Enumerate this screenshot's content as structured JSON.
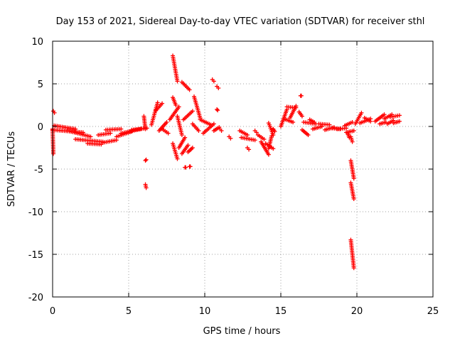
{
  "chart_data": {
    "type": "scatter",
    "title": "Day 153 of 2021, Sidereal Day-to-day VTEC variation (SDTVAR) for receiver sthl",
    "xlabel": "GPS time / hours",
    "ylabel": "SDTVAR / TECUs",
    "xlim": [
      0,
      25
    ],
    "ylim": [
      -20,
      10
    ],
    "xticks": [
      0,
      5,
      10,
      15,
      20,
      25
    ],
    "yticks": [
      10,
      5,
      0,
      -5,
      -10,
      -15,
      -20
    ],
    "xtick_labels": [
      "0",
      "5",
      "10",
      "15",
      "20",
      "25"
    ],
    "ytick_labels": [
      "10",
      "5",
      "0",
      "-5",
      "-10",
      "-15",
      "-20"
    ],
    "grid": true,
    "marker": "+",
    "color": "#ff0000",
    "series": [
      {
        "name": "SDTVAR",
        "segments": [
          [
            0.0,
            -0.3,
            0.05,
            -3.2
          ],
          [
            0.05,
            1.8,
            0.12,
            1.6
          ],
          [
            0.0,
            -0.4,
            2.0,
            -0.7
          ],
          [
            0.1,
            0.1,
            1.5,
            -0.3
          ],
          [
            1.0,
            -0.5,
            2.5,
            -1.2
          ],
          [
            1.5,
            -1.5,
            3.3,
            -1.8
          ],
          [
            2.3,
            -2.0,
            3.2,
            -2.1
          ],
          [
            3.0,
            -1.0,
            3.8,
            -0.8
          ],
          [
            3.3,
            -1.9,
            4.2,
            -1.6
          ],
          [
            3.5,
            -0.4,
            4.5,
            -0.3
          ],
          [
            4.2,
            -1.2,
            5.2,
            -0.6
          ],
          [
            4.5,
            -0.8,
            5.8,
            -0.3
          ],
          [
            5.2,
            -0.4,
            6.2,
            -0.2
          ],
          [
            6.0,
            1.2,
            6.1,
            -0.3
          ],
          [
            6.1,
            -4.0,
            6.15,
            -3.9
          ],
          [
            6.1,
            -6.8,
            6.15,
            -7.2
          ],
          [
            6.5,
            0.2,
            6.9,
            2.8
          ],
          [
            6.8,
            1.9,
            7.2,
            2.7
          ],
          [
            7.0,
            -0.5,
            7.5,
            0.5
          ],
          [
            7.2,
            -0.3,
            7.6,
            -0.8
          ],
          [
            7.7,
            0.8,
            8.3,
            2.3
          ],
          [
            7.9,
            8.3,
            8.2,
            5.3
          ],
          [
            7.9,
            3.4,
            8.1,
            2.5
          ],
          [
            8.2,
            1.2,
            8.5,
            -1.0
          ],
          [
            7.9,
            -2.0,
            8.2,
            -3.8
          ],
          [
            8.3,
            -2.5,
            8.7,
            -1.3
          ],
          [
            8.5,
            -3.2,
            8.9,
            -2.2
          ],
          [
            8.9,
            -3.0,
            9.2,
            -2.5
          ],
          [
            8.5,
            5.2,
            9.0,
            4.3
          ],
          [
            8.6,
            0.8,
            9.2,
            1.8
          ],
          [
            8.7,
            -4.8,
            8.75,
            -4.8
          ],
          [
            9.0,
            -4.7,
            9.05,
            -4.7
          ],
          [
            9.3,
            3.5,
            9.7,
            1.0
          ],
          [
            9.2,
            0.3,
            9.6,
            -0.5
          ],
          [
            9.7,
            0.8,
            10.4,
            0.2
          ],
          [
            9.9,
            -0.8,
            10.6,
            0.3
          ],
          [
            10.5,
            5.5,
            10.6,
            5.3
          ],
          [
            10.8,
            4.7,
            10.9,
            4.5
          ],
          [
            10.8,
            2.0,
            10.85,
            1.9
          ],
          [
            10.6,
            -0.5,
            10.95,
            -0.1
          ],
          [
            11.0,
            -0.3,
            11.1,
            -0.5
          ],
          [
            11.6,
            -1.2,
            11.7,
            -1.4
          ],
          [
            12.3,
            -0.5,
            12.8,
            -1.0
          ],
          [
            12.4,
            -1.3,
            13.3,
            -1.6
          ],
          [
            12.8,
            -2.5,
            12.9,
            -2.7
          ],
          [
            13.3,
            -0.5,
            13.4,
            -0.7
          ],
          [
            13.5,
            -1.0,
            13.9,
            -1.5
          ],
          [
            13.7,
            -1.8,
            14.2,
            -3.3
          ],
          [
            14.0,
            -2.0,
            14.5,
            -2.6
          ],
          [
            14.2,
            0.4,
            14.5,
            -1.0
          ],
          [
            14.5,
            -0.3,
            14.6,
            -0.6
          ],
          [
            14.2,
            -2.6,
            14.4,
            -1.1
          ],
          [
            15.0,
            0.0,
            15.4,
            2.0
          ],
          [
            15.4,
            2.3,
            16.0,
            2.2
          ],
          [
            15.2,
            0.9,
            15.8,
            0.5
          ],
          [
            15.6,
            1.0,
            16.0,
            2.4
          ],
          [
            16.3,
            3.6,
            16.35,
            3.6
          ],
          [
            16.2,
            1.7,
            16.4,
            1.2
          ],
          [
            16.4,
            -0.4,
            16.8,
            -1.0
          ],
          [
            16.5,
            0.5,
            17.3,
            0.3
          ],
          [
            16.9,
            0.8,
            17.2,
            0.5
          ],
          [
            17.1,
            -0.3,
            17.7,
            0.0
          ],
          [
            17.5,
            0.3,
            18.2,
            0.2
          ],
          [
            17.9,
            -0.4,
            18.5,
            -0.1
          ],
          [
            18.3,
            -0.2,
            18.9,
            -0.3
          ],
          [
            18.7,
            -0.3,
            19.3,
            -0.2
          ],
          [
            19.2,
            0.1,
            19.7,
            0.5
          ],
          [
            19.4,
            -0.8,
            19.5,
            -1.3
          ],
          [
            19.6,
            -1.2,
            19.7,
            -1.8
          ],
          [
            19.3,
            -0.7,
            19.8,
            -0.5
          ],
          [
            19.6,
            -4.0,
            19.8,
            -6.1
          ],
          [
            19.6,
            -6.6,
            19.8,
            -8.5
          ],
          [
            19.6,
            -13.3,
            19.8,
            -16.6
          ],
          [
            19.9,
            0.3,
            20.3,
            1.6
          ],
          [
            20.2,
            0.4,
            20.9,
            0.9
          ],
          [
            20.5,
            1.0,
            20.9,
            0.6
          ],
          [
            21.2,
            0.6,
            21.8,
            1.4
          ],
          [
            21.5,
            0.3,
            21.9,
            0.5
          ],
          [
            21.8,
            0.9,
            22.3,
            1.4
          ],
          [
            22.0,
            0.3,
            22.4,
            0.7
          ],
          [
            22.2,
            1.1,
            22.8,
            1.3
          ],
          [
            22.4,
            0.4,
            22.8,
            0.6
          ]
        ]
      }
    ]
  }
}
